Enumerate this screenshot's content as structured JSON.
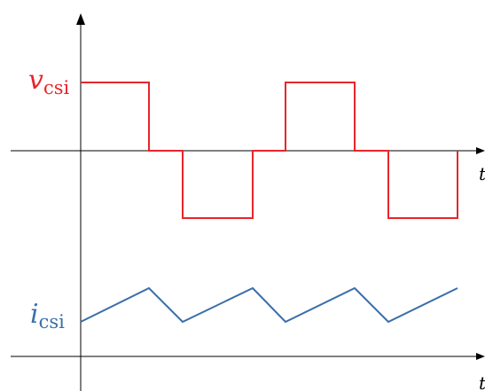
{
  "diagram": {
    "voltage_label": {
      "symbol": "v",
      "subscript": "csi",
      "color": "#e8252b"
    },
    "current_label": {
      "symbol": "i",
      "subscript": "csi",
      "color": "#3b6faa"
    },
    "time_axis_label": "t",
    "voltage_waveform_levels": [
      1,
      0,
      -1,
      0,
      1,
      0,
      -1
    ],
    "current_waveform_shape": "triangular"
  }
}
